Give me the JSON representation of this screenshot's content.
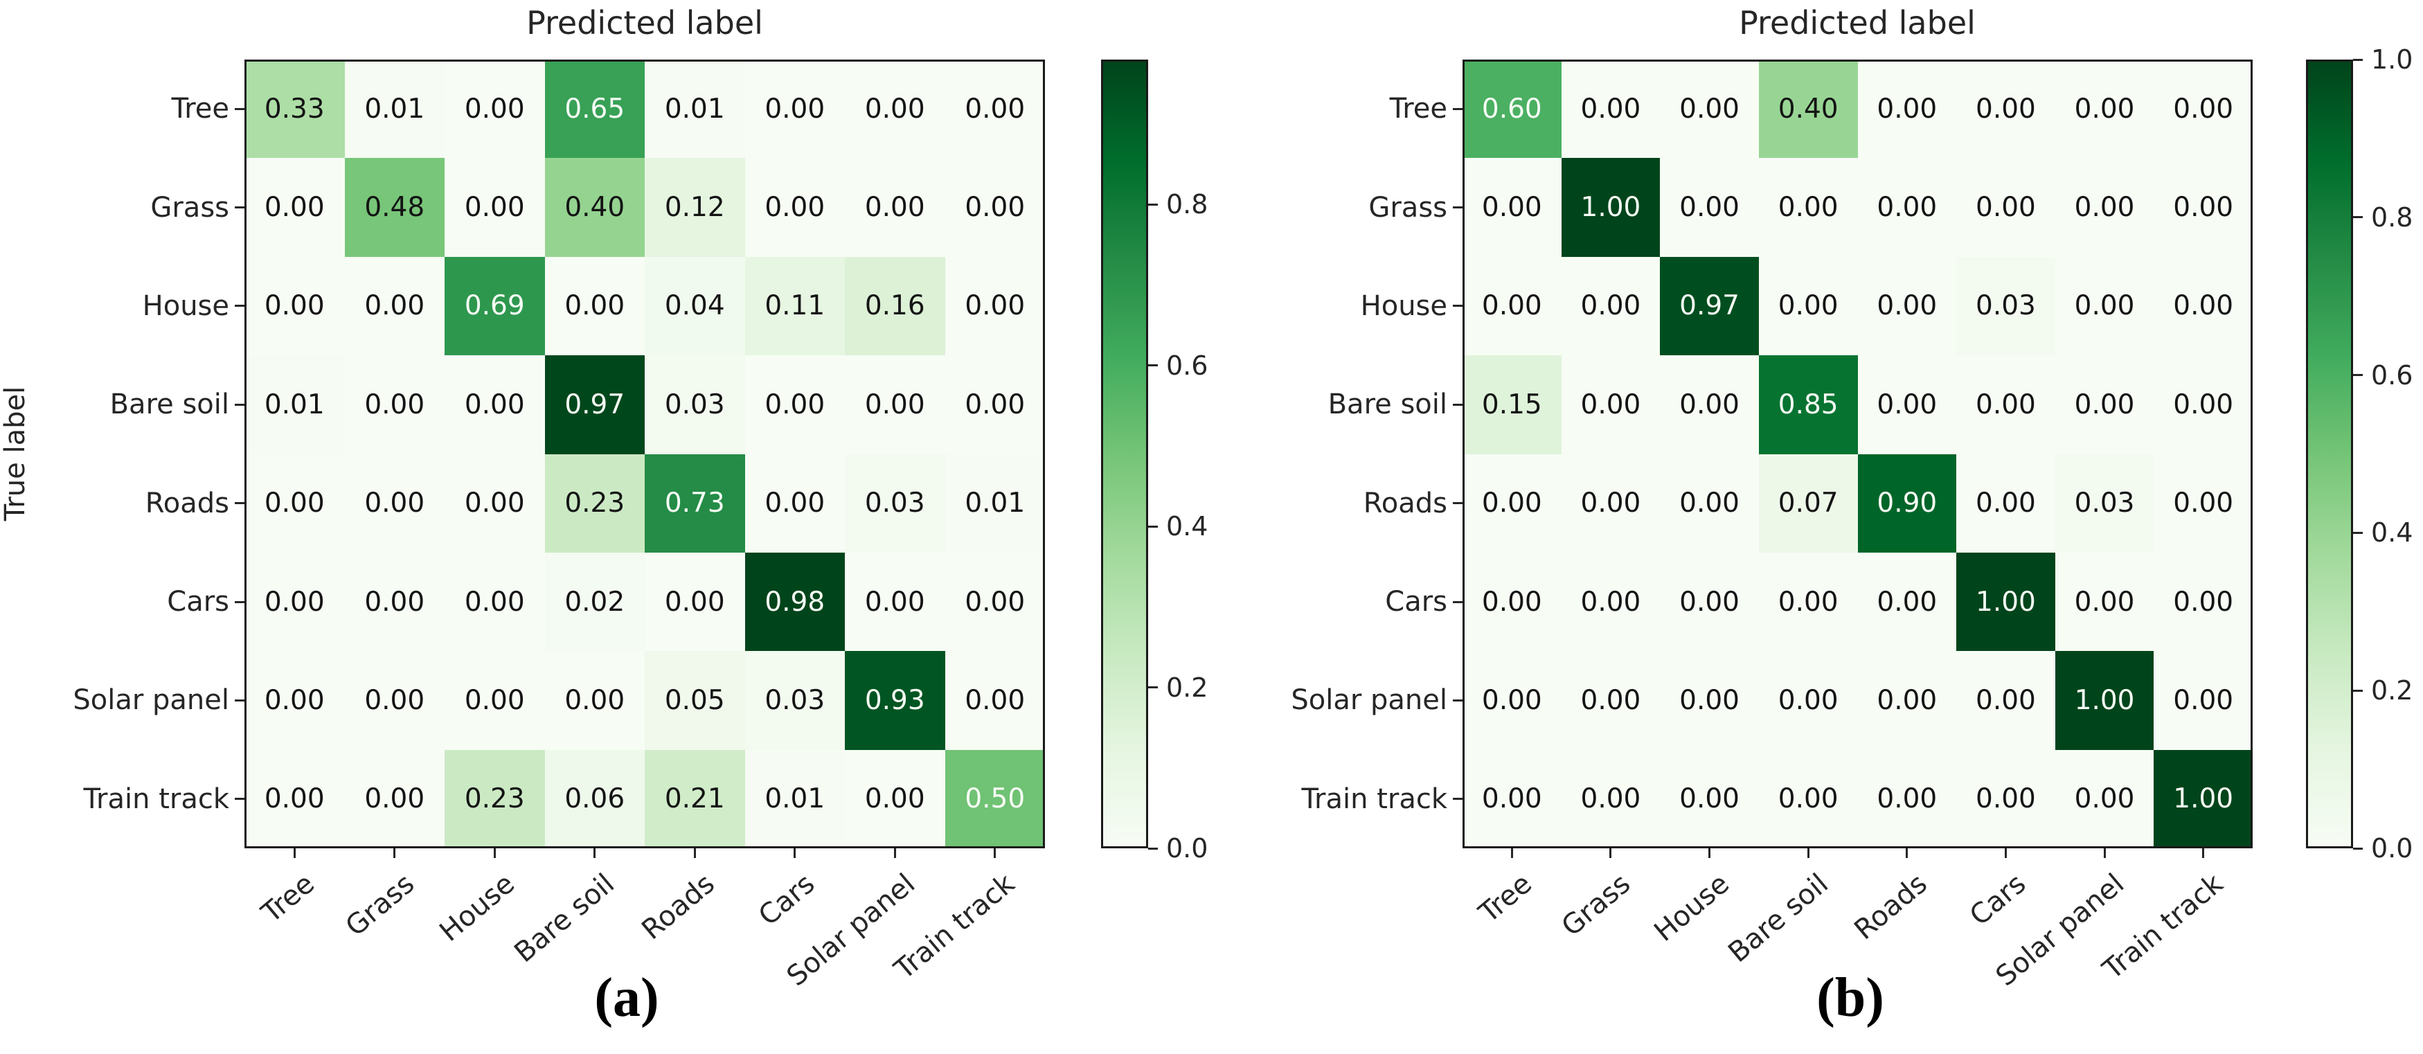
{
  "colors": {
    "background": "#ffffff",
    "axis": "#1a1a1a",
    "label": "#262626",
    "cell_text_dark": "#141414",
    "cell_text_light": "#f7fcf5",
    "colormap_name": "Greens",
    "colormap_stops": [
      "#f7fcf5",
      "#e5f5e0",
      "#c7e9c0",
      "#a1d99b",
      "#74c476",
      "#41ab5d",
      "#238b45",
      "#006d2c",
      "#00441b"
    ]
  },
  "chart_data": [
    {
      "type": "heatmap",
      "panel_id": "a",
      "caption": "(a)",
      "title": "Predicted label",
      "xlabel": "",
      "ylabel": "True label",
      "categories": [
        "Tree",
        "Grass",
        "House",
        "Bare soil",
        "Roads",
        "Cars",
        "Solar panel",
        "Train track"
      ],
      "matrix": [
        [
          0.33,
          0.01,
          0.0,
          0.65,
          0.01,
          0.0,
          0.0,
          0.0
        ],
        [
          0.0,
          0.48,
          0.0,
          0.4,
          0.12,
          0.0,
          0.0,
          0.0
        ],
        [
          0.0,
          0.0,
          0.69,
          0.0,
          0.04,
          0.11,
          0.16,
          0.0
        ],
        [
          0.01,
          0.0,
          0.0,
          0.97,
          0.03,
          0.0,
          0.0,
          0.0
        ],
        [
          0.0,
          0.0,
          0.0,
          0.23,
          0.73,
          0.0,
          0.03,
          0.01
        ],
        [
          0.0,
          0.0,
          0.0,
          0.02,
          0.0,
          0.98,
          0.0,
          0.0
        ],
        [
          0.0,
          0.0,
          0.0,
          0.0,
          0.05,
          0.03,
          0.93,
          0.0
        ],
        [
          0.0,
          0.0,
          0.23,
          0.06,
          0.21,
          0.01,
          0.0,
          0.5
        ]
      ],
      "value_format": "0.00",
      "vmin": 0.0,
      "vmax": 0.98,
      "grid": false,
      "colorbar_position": "right",
      "colorbar_ticks": [
        "0.8",
        "0.6",
        "0.4",
        "0.2",
        "0.0"
      ]
    },
    {
      "type": "heatmap",
      "panel_id": "b",
      "caption": "(b)",
      "title": "Predicted label",
      "xlabel": "",
      "ylabel": "",
      "categories": [
        "Tree",
        "Grass",
        "House",
        "Bare soil",
        "Roads",
        "Cars",
        "Solar panel",
        "Train track"
      ],
      "matrix": [
        [
          0.6,
          0.0,
          0.0,
          0.4,
          0.0,
          0.0,
          0.0,
          0.0
        ],
        [
          0.0,
          1.0,
          0.0,
          0.0,
          0.0,
          0.0,
          0.0,
          0.0
        ],
        [
          0.0,
          0.0,
          0.97,
          0.0,
          0.0,
          0.03,
          0.0,
          0.0
        ],
        [
          0.15,
          0.0,
          0.0,
          0.85,
          0.0,
          0.0,
          0.0,
          0.0
        ],
        [
          0.0,
          0.0,
          0.0,
          0.07,
          0.9,
          0.0,
          0.03,
          0.0
        ],
        [
          0.0,
          0.0,
          0.0,
          0.0,
          0.0,
          1.0,
          0.0,
          0.0
        ],
        [
          0.0,
          0.0,
          0.0,
          0.0,
          0.0,
          0.0,
          1.0,
          0.0
        ],
        [
          0.0,
          0.0,
          0.0,
          0.0,
          0.0,
          0.0,
          0.0,
          1.0
        ]
      ],
      "value_format": "0.00",
      "vmin": 0.0,
      "vmax": 1.0,
      "grid": false,
      "colorbar_position": "right",
      "colorbar_ticks": [
        "1.0",
        "0.8",
        "0.6",
        "0.4",
        "0.2",
        "0.0"
      ]
    }
  ]
}
